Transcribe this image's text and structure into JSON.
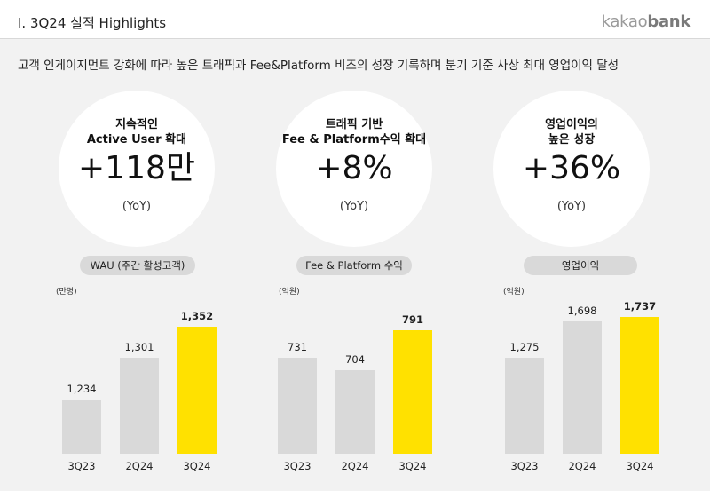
{
  "header": {
    "title": "I. 3Q24 실적 Highlights",
    "logo_light": "kakao",
    "logo_bold": "bank"
  },
  "subtitle": "고객 인게이지먼트 강화에 따라 높은 트래픽과 Fee&Platform 비즈의 성장 기록하며 분기 기준 사상 최대 영업이익 달성",
  "kpis": [
    {
      "label_line1": "지속적인",
      "label_line2": "Active User 확대",
      "value": "+118만",
      "note": "(YoY)"
    },
    {
      "label_line1": "트래픽 기반",
      "label_line2": "Fee & Platform수익 확대",
      "value": "+8%",
      "note": "(YoY)"
    },
    {
      "label_line1": "영업이익의",
      "label_line2": "높은 성장",
      "value": "+36%",
      "note": "(YoY)"
    }
  ],
  "colors": {
    "bar_gray": "#d9d9d9",
    "bar_highlight": "#ffe100"
  },
  "chart_data": [
    {
      "type": "bar",
      "title": "WAU (주간 활성고객)",
      "unit": "(만명)",
      "categories": [
        "3Q23",
        "2Q24",
        "3Q24"
      ],
      "values": [
        1234,
        1301,
        1352
      ],
      "value_labels": [
        "1,234",
        "1,301",
        "1,352"
      ],
      "highlight_index": 2
    },
    {
      "type": "bar",
      "title": "Fee & Platform 수익",
      "unit": "(억원)",
      "categories": [
        "3Q23",
        "2Q24",
        "3Q24"
      ],
      "values": [
        731,
        704,
        791
      ],
      "value_labels": [
        "731",
        "704",
        "791"
      ],
      "highlight_index": 2
    },
    {
      "type": "bar",
      "title": "영업이익",
      "unit": "(억원)",
      "categories": [
        "3Q23",
        "2Q24",
        "3Q24"
      ],
      "values": [
        1275,
        1698,
        1737
      ],
      "value_labels": [
        "1,275",
        "1,698",
        "1,737"
      ],
      "highlight_index": 2
    }
  ]
}
